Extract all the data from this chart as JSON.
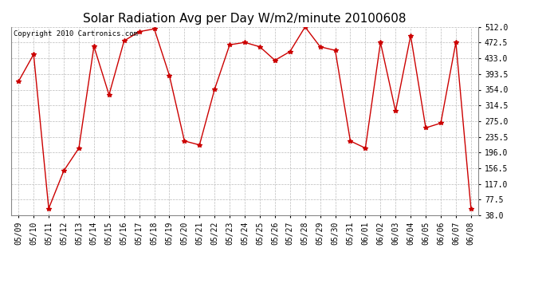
{
  "title": "Solar Radiation Avg per Day W/m2/minute 20100608",
  "copyright_text": "Copyright 2010 Cartronics.com",
  "x_labels": [
    "05/09",
    "05/10",
    "05/11",
    "05/12",
    "05/13",
    "05/14",
    "05/15",
    "05/16",
    "05/17",
    "05/18",
    "05/19",
    "05/20",
    "05/21",
    "05/22",
    "05/23",
    "05/24",
    "05/25",
    "05/26",
    "05/27",
    "05/28",
    "05/29",
    "05/30",
    "05/31",
    "06/01",
    "06/02",
    "06/03",
    "06/04",
    "06/05",
    "06/06",
    "06/07",
    "06/08"
  ],
  "y_values": [
    375,
    443,
    55,
    150,
    207,
    463,
    341,
    477,
    500,
    507,
    390,
    225,
    215,
    355,
    467,
    473,
    462,
    428,
    450,
    512,
    462,
    453,
    225,
    207,
    473,
    300,
    490,
    258,
    270,
    473,
    55
  ],
  "y_ticks": [
    38.0,
    77.5,
    117.0,
    156.5,
    196.0,
    235.5,
    275.0,
    314.5,
    354.0,
    393.5,
    433.0,
    472.5,
    512.0
  ],
  "y_min": 38.0,
  "y_max": 512.0,
  "line_color": "#cc0000",
  "marker_color": "#cc0000",
  "bg_color": "#ffffff",
  "grid_color": "#bbbbbb",
  "title_fontsize": 11,
  "copyright_fontsize": 6.5,
  "tick_fontsize": 7,
  "marker": "*",
  "marker_size": 4
}
